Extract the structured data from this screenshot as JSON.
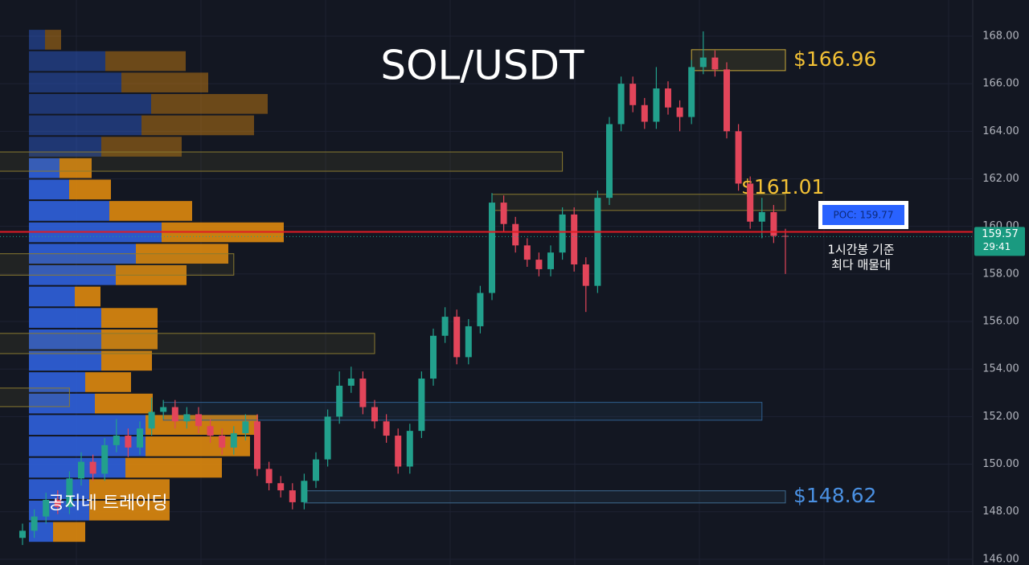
{
  "chart_data": {
    "type": "candlestick",
    "title": "SOL/USDT",
    "watermark": "공지네 트레이딩",
    "annotation": [
      "1시간봉 기준",
      "최다 매물대"
    ],
    "up_color": "#22a08c",
    "down_color": "#e2455a",
    "grid": true,
    "ylim": [
      145.76,
      169.52
    ],
    "yticks": [
      {
        "value": 146,
        "label": "146.00"
      },
      {
        "value": 148,
        "label": "148.00"
      },
      {
        "value": 150,
        "label": "150.00"
      },
      {
        "value": 152,
        "label": "152.00"
      },
      {
        "value": 154,
        "label": "154.00"
      },
      {
        "value": 156,
        "label": "156.00"
      },
      {
        "value": 158,
        "label": "158.00"
      },
      {
        "value": 160,
        "label": "160.00"
      },
      {
        "value": 162,
        "label": "162.00"
      },
      {
        "value": 164,
        "label": "164.00"
      },
      {
        "value": 166,
        "label": "166.00"
      },
      {
        "value": 168,
        "label": "168.00"
      }
    ],
    "open": [
      146.9,
      147.2,
      147.8,
      148.5,
      148.2,
      149.4,
      150.1,
      149.6,
      150.8,
      151.2,
      150.7,
      151.5,
      152.2,
      152.4,
      151.8,
      152.1,
      151.6,
      151.2,
      150.7,
      151.3,
      151.8,
      149.8,
      149.2,
      148.9,
      148.4,
      149.3,
      150.2,
      152.0,
      153.3,
      153.6,
      152.4,
      151.8,
      151.2,
      149.9,
      151.4,
      153.6,
      155.4,
      156.2,
      154.5,
      155.8,
      157.2,
      161.0,
      160.1,
      159.2,
      158.6,
      158.2,
      158.9,
      160.5,
      158.4,
      157.5,
      161.2,
      164.3,
      166.0,
      165.1,
      164.4,
      165.8,
      165.0,
      164.6,
      166.7,
      167.1,
      166.6,
      164.0,
      161.8,
      160.2,
      160.6,
      159.6
    ],
    "high": [
      147.5,
      148.1,
      148.8,
      148.9,
      149.7,
      150.5,
      150.4,
      151.1,
      151.9,
      151.5,
      151.8,
      152.8,
      152.7,
      152.7,
      152.4,
      152.4,
      151.9,
      151.5,
      151.6,
      152.1,
      152.1,
      150.1,
      149.5,
      149.2,
      149.6,
      150.5,
      152.3,
      153.9,
      154.1,
      153.9,
      152.7,
      152.1,
      151.5,
      151.7,
      153.9,
      155.7,
      156.6,
      156.5,
      156.1,
      157.5,
      161.4,
      161.3,
      160.4,
      159.5,
      158.9,
      159.2,
      160.8,
      160.8,
      158.7,
      161.5,
      164.6,
      166.3,
      166.3,
      165.4,
      166.7,
      166.1,
      165.3,
      167.0,
      168.2,
      167.4,
      166.9,
      164.3,
      162.1,
      161.2,
      160.9,
      159.9
    ],
    "low": [
      146.6,
      146.9,
      147.5,
      147.9,
      147.9,
      149.1,
      149.3,
      149.3,
      150.5,
      150.3,
      150.4,
      151.2,
      151.9,
      151.5,
      151.5,
      151.3,
      150.9,
      150.4,
      150.4,
      151.0,
      149.5,
      148.9,
      148.6,
      148.1,
      148.1,
      149.0,
      149.9,
      151.7,
      153.0,
      152.1,
      151.5,
      150.9,
      149.6,
      149.6,
      151.1,
      153.3,
      155.1,
      154.2,
      154.2,
      155.5,
      156.9,
      159.8,
      158.9,
      158.3,
      157.9,
      157.9,
      158.6,
      158.1,
      156.4,
      157.2,
      160.9,
      164.0,
      164.8,
      164.1,
      164.1,
      164.7,
      164.0,
      164.3,
      166.4,
      166.3,
      163.7,
      161.5,
      159.9,
      159.5,
      159.3,
      158.0
    ],
    "close": [
      147.2,
      147.8,
      148.5,
      148.2,
      149.4,
      150.1,
      149.6,
      150.8,
      151.2,
      150.7,
      151.5,
      152.2,
      152.4,
      151.8,
      152.1,
      151.6,
      151.2,
      150.7,
      151.3,
      151.8,
      149.8,
      149.2,
      148.9,
      148.4,
      149.3,
      150.2,
      152.0,
      153.3,
      153.6,
      152.4,
      151.8,
      151.2,
      149.9,
      151.4,
      153.6,
      155.4,
      156.2,
      154.5,
      155.8,
      157.2,
      161.0,
      160.1,
      159.2,
      158.6,
      158.2,
      158.9,
      160.5,
      158.4,
      157.5,
      161.2,
      164.3,
      166.0,
      165.1,
      164.4,
      165.8,
      165.0,
      164.6,
      166.7,
      167.1,
      166.6,
      164.0,
      161.8,
      160.2,
      160.6,
      159.6,
      159.57
    ],
    "volume_profile": {
      "bins": [
        146.7,
        147.6,
        148.5,
        149.4,
        150.3,
        151.2,
        152.1,
        153.0,
        153.9,
        154.8,
        155.7,
        156.6,
        157.5,
        158.4,
        159.3,
        160.2,
        161.1,
        162.0,
        162.9,
        163.8,
        164.7,
        165.6,
        166.5,
        167.4,
        168.3
      ],
      "series": [
        {
          "name": "buy",
          "color": "#2f5fd8",
          "values": [
            30,
            75,
            75,
            120,
            145,
            145,
            82,
            70,
            90,
            90,
            90,
            57,
            108,
            133,
            165,
            100,
            50,
            38,
            90,
            140,
            152,
            115,
            95,
            20
          ]
        },
        {
          "name": "sell",
          "color": "#d9870f",
          "values": [
            40,
            100,
            100,
            120,
            130,
            140,
            72,
            57,
            63,
            70,
            70,
            32,
            88,
            115,
            152,
            103,
            52,
            40,
            100,
            140,
            145,
            108,
            100,
            20
          ]
        }
      ]
    },
    "zones": [
      {
        "low": 166.55,
        "high": 167.43,
        "from": 57,
        "to": 65,
        "color": "#c9a93a",
        "label": "$166.96",
        "label_color": "#f2c035"
      },
      {
        "low": 162.32,
        "high": 163.13,
        "from": -2,
        "to": 46,
        "color": "#8a7a30"
      },
      {
        "low": 160.67,
        "high": 161.35,
        "from": 40,
        "to": 65,
        "color": "#8a7a30",
        "label": "$161.01",
        "label_color": "#f2c035"
      },
      {
        "low": 157.95,
        "high": 158.85,
        "from": -2,
        "to": 18,
        "color": "#8a7a30"
      },
      {
        "low": 154.65,
        "high": 155.5,
        "from": -2,
        "to": 30,
        "color": "#8a7a30"
      },
      {
        "low": 152.42,
        "high": 153.2,
        "from": -2,
        "to": 4,
        "color": "#8a7a30"
      },
      {
        "low": 151.85,
        "high": 152.6,
        "from": 12,
        "to": 63,
        "color": "#2f5f8f"
      },
      {
        "low": 148.37,
        "high": 148.88,
        "from": 24,
        "to": 65,
        "color": "#3e6a8f",
        "label": "$148.62",
        "label_color": "#4a90e2"
      }
    ],
    "poc": {
      "value": 159.77,
      "label": "POC: 159.77",
      "color": "#e01b24"
    },
    "last_price": 159.57,
    "countdown": "29:41"
  }
}
